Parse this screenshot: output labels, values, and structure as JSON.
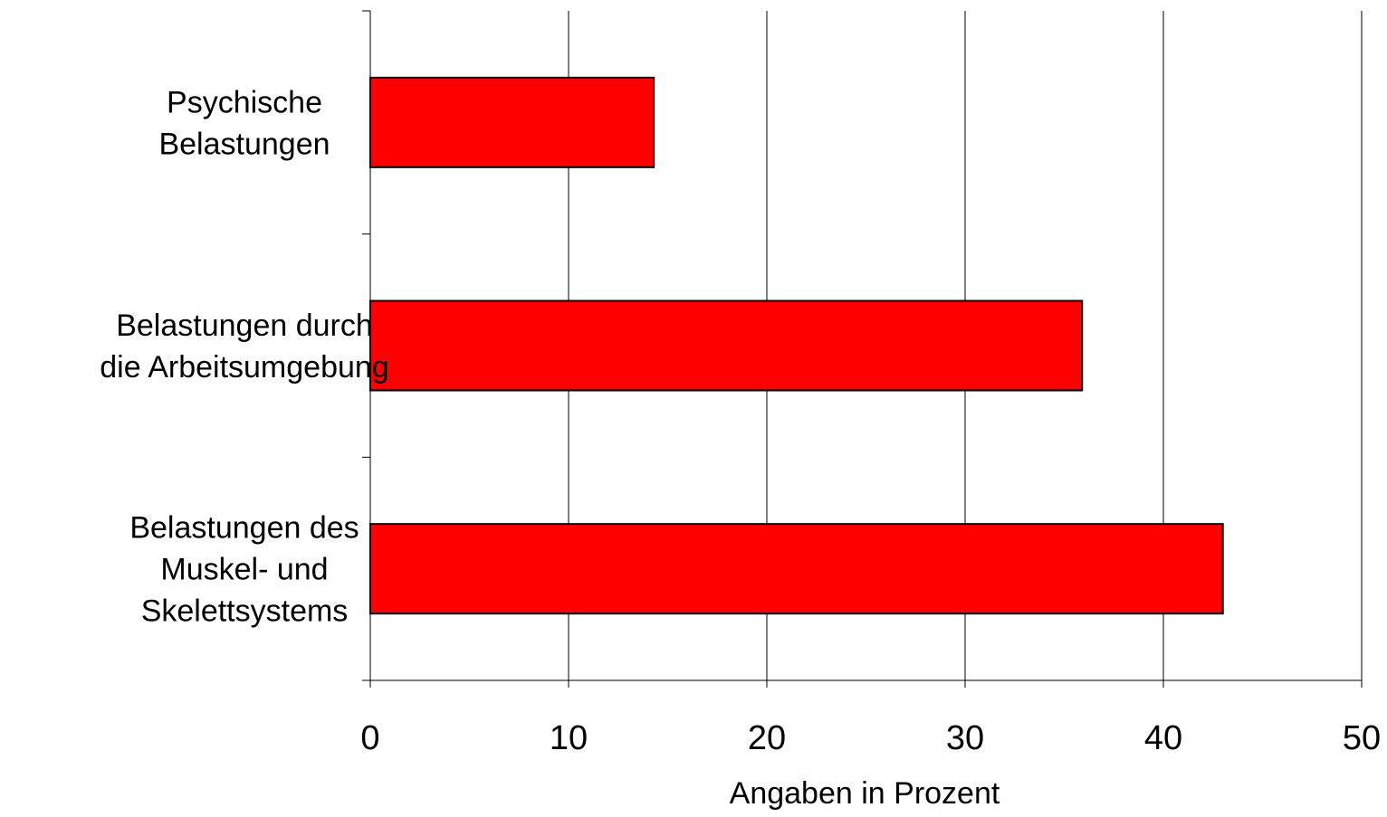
{
  "chart_data": {
    "type": "bar",
    "orientation": "horizontal",
    "categories": [
      [
        "Psychische",
        "Belastungen"
      ],
      [
        "Belastungen durch",
        "die Arbeitsumgebung"
      ],
      [
        "Belastungen des",
        "Muskel- und",
        "Skelettsystems"
      ]
    ],
    "values": [
      14.3,
      35.9,
      43.0
    ],
    "xlabel": "Angaben in Prozent",
    "xlim": [
      0,
      50
    ],
    "xticks": [
      "0",
      "10",
      "20",
      "30",
      "40",
      "50"
    ],
    "grid": "vertical",
    "bar_color": "#ff0000",
    "bar_edge_color": "#000000",
    "legend": "none"
  }
}
